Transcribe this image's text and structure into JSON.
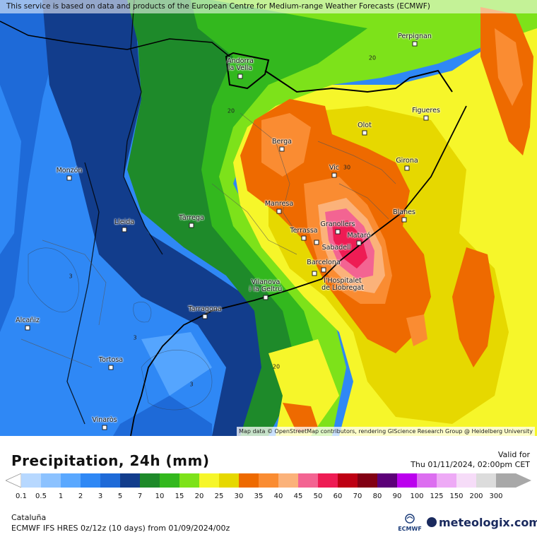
{
  "notice": "This service is based on data and products of the European Centre for Medium-range Weather Forecasts (ECMWF)",
  "attribution": "Map data © OpenStreetMap contributors, rendering GIScience Research Group @ Heidelberg University",
  "title": "Precipitation, 24h (mm)",
  "valid_label": "Valid for",
  "valid_date": "Thu 01/11/2024, 02:00pm CET",
  "region": "Cataluña",
  "model_info": "ECMWF IFS HRES 0z/12z (10 days) from 01/09/2024/00z",
  "ecmwf_label": "ECMWF",
  "brand": "meteologix.com",
  "legend": {
    "ticks": [
      "0.1",
      "0.5",
      "1",
      "2",
      "3",
      "5",
      "7",
      "10",
      "15",
      "20",
      "25",
      "30",
      "35",
      "40",
      "45",
      "50",
      "60",
      "70",
      "80",
      "90",
      "100",
      "125",
      "150",
      "200",
      "300"
    ],
    "colors": [
      "#b7d8ff",
      "#8cc2ff",
      "#5aa8ff",
      "#2f88f5",
      "#1e6ad8",
      "#123d8c",
      "#1e8a2a",
      "#33b81e",
      "#7de21a",
      "#f6f62a",
      "#e6d800",
      "#ee6a00",
      "#fa8c32",
      "#fbb27a",
      "#f36492",
      "#ee1c54",
      "#be0014",
      "#820014",
      "#5c0078",
      "#bb00ee",
      "#dc6ef0",
      "#eeaaf6",
      "#f6dcf8",
      "#dcdcdc",
      "#a8a8a8"
    ]
  },
  "cities": [
    {
      "name": "Perpignan",
      "label_pos": "above"
    },
    {
      "name": "Andorra la Vella",
      "label_pos": "above"
    },
    {
      "name": "Figueres",
      "label_pos": "above"
    },
    {
      "name": "Olot",
      "label_pos": "above"
    },
    {
      "name": "Berga",
      "label_pos": "above"
    },
    {
      "name": "Girona",
      "label_pos": "above"
    },
    {
      "name": "Vic",
      "label_pos": "above"
    },
    {
      "name": "Monzón",
      "label_pos": "above"
    },
    {
      "name": "Manresa",
      "label_pos": "above"
    },
    {
      "name": "Tàrrega",
      "label_pos": "above"
    },
    {
      "name": "Lleida",
      "label_pos": "above"
    },
    {
      "name": "Blanes",
      "label_pos": "above"
    },
    {
      "name": "Granollers",
      "label_pos": "above"
    },
    {
      "name": "Terrassa",
      "label_pos": "above"
    },
    {
      "name": "Mataró",
      "label_pos": "above"
    },
    {
      "name": "Sabadell",
      "label_pos": "below"
    },
    {
      "name": "Barcelona",
      "label_pos": "above"
    },
    {
      "name": "l'Hospitalet de Llobregat",
      "label_pos": "below"
    },
    {
      "name": "Vilanova i la Geltrú",
      "label_pos": "above"
    },
    {
      "name": "Tarragona",
      "label_pos": "above"
    },
    {
      "name": "Alcañiz",
      "label_pos": "above"
    },
    {
      "name": "Tortosa",
      "label_pos": "above"
    },
    {
      "name": "Vinaròs",
      "label_pos": "above"
    }
  ],
  "isoline_labels": [
    "20",
    "20",
    "30",
    "20",
    "3",
    "3",
    "3"
  ]
}
